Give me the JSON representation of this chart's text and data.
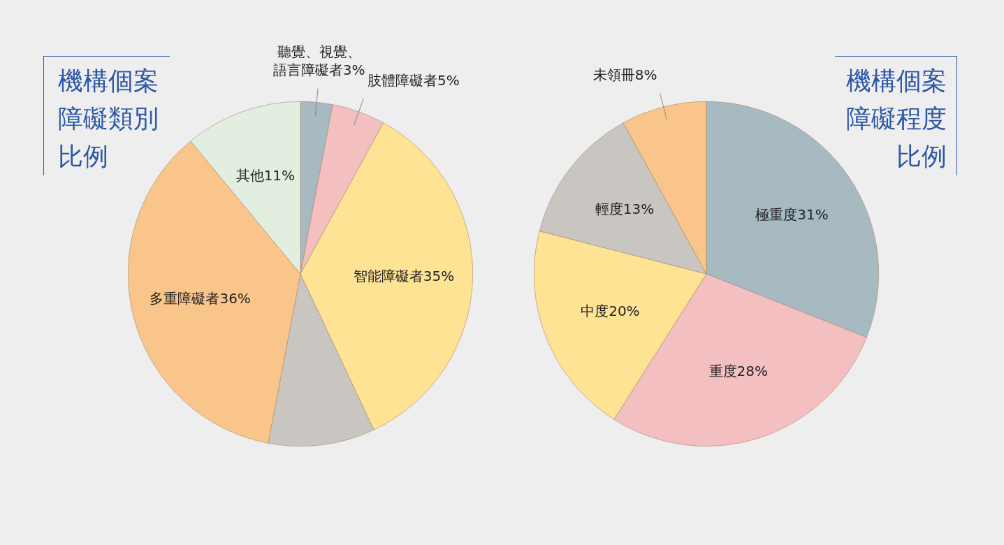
{
  "chart_data": [
    {
      "type": "pie",
      "title": "機構個案障礙類別比例",
      "categories": [
        "聽覺、視覺、語言障礙者",
        "肢體障礙者",
        "智能障礙者",
        null,
        "多重障礙者",
        "其他"
      ],
      "values": [
        3,
        5,
        35,
        10,
        36,
        11
      ],
      "value_labels": [
        "3%",
        "5%",
        "35%",
        null,
        "36%",
        "11%"
      ],
      "colors": [
        "#a7b9c1",
        "#f4bfc1",
        "#fee394",
        "#c9c6c2",
        "#f9c58a",
        "#e2eedf"
      ],
      "legend": false
    },
    {
      "type": "pie",
      "title": "機構個案障礙程度比例",
      "categories": [
        "極重度",
        "重度",
        "中度",
        "輕度",
        "未領冊"
      ],
      "values": [
        31,
        28,
        20,
        13,
        8
      ],
      "value_labels": [
        "31%",
        "28%",
        "20%",
        "13%",
        "8%"
      ],
      "colors": [
        "#a7b9c1",
        "#f4bfc1",
        "#fee394",
        "#c9c6c2",
        "#f9c58a"
      ],
      "legend": false
    }
  ]
}
